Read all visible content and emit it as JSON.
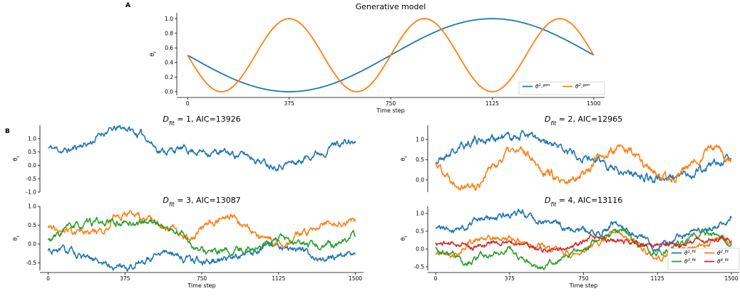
{
  "panel_labels": {
    "a": "A",
    "b": "B"
  },
  "chart_data": [
    {
      "id": "gen",
      "type": "line",
      "title": "Generative model",
      "xlabel": "Time step",
      "ylabel": "θ_t",
      "xlim": [
        -40,
        1540
      ],
      "ylim": [
        -0.05,
        1.08
      ],
      "xticks": [
        0,
        375,
        750,
        1125,
        1500
      ],
      "yticks": [
        0.0,
        0.2,
        0.4,
        0.6,
        0.8,
        1.0
      ],
      "ytick_decimals": 1,
      "grid": false,
      "legend": {
        "position": "bottom-right",
        "columns": 2
      },
      "series": [
        {
          "name": "θ^1_gen",
          "color": "#1f77b4",
          "gen": {
            "kind": "sin",
            "amp": 0.5,
            "period": 1500,
            "offset": 0.5
          }
        },
        {
          "name": "θ^2_gen",
          "color": "#ff7f0e",
          "gen": {
            "kind": "sin",
            "amp": 0.5,
            "period": 500,
            "offset": 0.5
          }
        }
      ]
    },
    {
      "id": "d1",
      "type": "line",
      "title": "D_fit = 1, AIC=13926",
      "xlabel": "",
      "ylabel": "θ_t",
      "xlim": [
        -40,
        1540
      ],
      "ylim": [
        -1.0,
        1.5
      ],
      "xticks": [],
      "yticks": [
        -1.0,
        -0.5,
        0.0,
        0.5,
        1.0
      ],
      "ytick_decimals": 1,
      "grid": false,
      "series": [
        {
          "name": "",
          "color": "#1f77b4",
          "gen": {
            "kind": "walk",
            "seed": 11,
            "sigma": 0.11,
            "anchors": [
              [
                0,
                0.65
              ],
              [
                90,
                0.55
              ],
              [
                180,
                0.8
              ],
              [
                300,
                1.3
              ],
              [
                375,
                1.4
              ],
              [
                450,
                1.15
              ],
              [
                560,
                0.55
              ],
              [
                650,
                0.6
              ],
              [
                800,
                0.5
              ],
              [
                950,
                0.4
              ],
              [
                1100,
                0.05
              ],
              [
                1200,
                0.1
              ],
              [
                1320,
                0.5
              ],
              [
                1420,
                0.85
              ],
              [
                1500,
                0.85
              ]
            ]
          }
        }
      ]
    },
    {
      "id": "d2",
      "type": "line",
      "title": "D_fit = 2, AIC=12965",
      "xlabel": "",
      "ylabel": "θ_t",
      "xlim": [
        -40,
        1540
      ],
      "ylim": [
        -0.3,
        1.35
      ],
      "xticks": [],
      "yticks": [
        0.0,
        0.5,
        1.0
      ],
      "ytick_decimals": 1,
      "grid": false,
      "series": [
        {
          "name": "",
          "color": "#1f77b4",
          "gen": {
            "kind": "walk",
            "seed": 21,
            "sigma": 0.09,
            "anchors": [
              [
                0,
                0.45
              ],
              [
                90,
                0.7
              ],
              [
                200,
                1.0
              ],
              [
                375,
                1.05
              ],
              [
                450,
                1.15
              ],
              [
                560,
                0.85
              ],
              [
                700,
                0.7
              ],
              [
                850,
                0.4
              ],
              [
                1000,
                0.2
              ],
              [
                1125,
                0.0
              ],
              [
                1250,
                0.1
              ],
              [
                1350,
                0.25
              ],
              [
                1450,
                0.45
              ],
              [
                1500,
                0.6
              ]
            ]
          }
        },
        {
          "name": "",
          "color": "#ff7f0e",
          "gen": {
            "kind": "walk",
            "seed": 22,
            "sigma": 0.09,
            "anchors": [
              [
                0,
                0.4
              ],
              [
                100,
                0.0
              ],
              [
                200,
                -0.15
              ],
              [
                280,
                0.3
              ],
              [
                375,
                0.7
              ],
              [
                470,
                0.65
              ],
              [
                560,
                0.25
              ],
              [
                650,
                -0.15
              ],
              [
                750,
                0.2
              ],
              [
                850,
                0.65
              ],
              [
                950,
                0.75
              ],
              [
                1100,
                0.3
              ],
              [
                1150,
                -0.05
              ],
              [
                1280,
                0.3
              ],
              [
                1400,
                0.85
              ],
              [
                1500,
                0.45
              ]
            ]
          }
        }
      ]
    },
    {
      "id": "d3",
      "type": "line",
      "title": "D_fit = 3, AIC=13087",
      "xlabel": "Time step",
      "ylabel": "θ_t",
      "xlim": [
        -40,
        1540
      ],
      "ylim": [
        -0.7,
        1.0
      ],
      "xticks": [
        0,
        375,
        750,
        1125,
        1500
      ],
      "yticks": [
        -0.5,
        0.0,
        0.5,
        1.0
      ],
      "ytick_decimals": 1,
      "grid": false,
      "series": [
        {
          "name": "",
          "color": "#1f77b4",
          "gen": {
            "kind": "walk",
            "seed": 31,
            "sigma": 0.08,
            "anchors": [
              [
                0,
                -0.2
              ],
              [
                100,
                -0.2
              ],
              [
                200,
                -0.45
              ],
              [
                375,
                -0.6
              ],
              [
                450,
                -0.5
              ],
              [
                560,
                -0.15
              ],
              [
                700,
                -0.4
              ],
              [
                800,
                -0.45
              ],
              [
                950,
                -0.25
              ],
              [
                1125,
                0.0
              ],
              [
                1250,
                -0.2
              ],
              [
                1350,
                -0.4
              ],
              [
                1500,
                -0.2
              ]
            ]
          }
        },
        {
          "name": "",
          "color": "#ff7f0e",
          "gen": {
            "kind": "walk",
            "seed": 32,
            "sigma": 0.08,
            "anchors": [
              [
                0,
                0.45
              ],
              [
                120,
                0.3
              ],
              [
                250,
                0.35
              ],
              [
                340,
                0.75
              ],
              [
                420,
                0.8
              ],
              [
                520,
                0.65
              ],
              [
                600,
                0.3
              ],
              [
                700,
                0.2
              ],
              [
                800,
                0.55
              ],
              [
                870,
                0.8
              ],
              [
                950,
                0.55
              ],
              [
                1050,
                0.15
              ],
              [
                1150,
                0.0
              ],
              [
                1250,
                0.3
              ],
              [
                1400,
                0.65
              ],
              [
                1500,
                0.65
              ]
            ]
          }
        },
        {
          "name": "",
          "color": "#2ca02c",
          "gen": {
            "kind": "walk",
            "seed": 33,
            "sigma": 0.08,
            "anchors": [
              [
                0,
                0.1
              ],
              [
                120,
                0.45
              ],
              [
                250,
                0.55
              ],
              [
                375,
                0.55
              ],
              [
                500,
                0.6
              ],
              [
                640,
                0.3
              ],
              [
                750,
                -0.2
              ],
              [
                850,
                -0.25
              ],
              [
                1000,
                -0.1
              ],
              [
                1125,
                0.1
              ],
              [
                1250,
                -0.05
              ],
              [
                1380,
                -0.05
              ],
              [
                1500,
                0.2
              ]
            ]
          }
        }
      ]
    },
    {
      "id": "d4",
      "type": "line",
      "title": "D_fit = 4, AIC=13116",
      "xlabel": "Time step",
      "ylabel": "θ_t",
      "xlim": [
        -40,
        1540
      ],
      "ylim": [
        -0.6,
        1.2
      ],
      "xticks": [
        0,
        375,
        750,
        1125,
        1500
      ],
      "yticks": [
        -0.5,
        0.0,
        0.5,
        1.0
      ],
      "ytick_decimals": 1,
      "grid": false,
      "legend": {
        "position": "bottom-right",
        "columns": 2
      },
      "series": [
        {
          "name": "θ^1_fit",
          "color": "#1f77b4",
          "gen": {
            "kind": "walk",
            "seed": 41,
            "sigma": 0.08,
            "anchors": [
              [
                0,
                0.55
              ],
              [
                100,
                0.6
              ],
              [
                250,
                0.85
              ],
              [
                375,
                0.95
              ],
              [
                450,
                1.0
              ],
              [
                560,
                0.75
              ],
              [
                700,
                0.55
              ],
              [
                800,
                0.45
              ],
              [
                900,
                0.7
              ],
              [
                1000,
                0.45
              ],
              [
                1125,
                0.0
              ],
              [
                1250,
                0.35
              ],
              [
                1380,
                0.55
              ],
              [
                1500,
                0.85
              ]
            ]
          }
        },
        {
          "name": "θ^2_fit",
          "color": "#ff7f0e",
          "gen": {
            "kind": "walk",
            "seed": 42,
            "sigma": 0.07,
            "anchors": [
              [
                0,
                -0.15
              ],
              [
                100,
                -0.1
              ],
              [
                200,
                0.25
              ],
              [
                375,
                0.3
              ],
              [
                500,
                0.15
              ],
              [
                600,
                -0.05
              ],
              [
                700,
                -0.15
              ],
              [
                800,
                0.15
              ],
              [
                900,
                0.4
              ],
              [
                1000,
                0.2
              ],
              [
                1125,
                -0.25
              ],
              [
                1250,
                0.0
              ],
              [
                1350,
                0.1
              ],
              [
                1450,
                0.35
              ],
              [
                1500,
                0.1
              ]
            ]
          }
        },
        {
          "name": "θ^3_fit",
          "color": "#2ca02c",
          "gen": {
            "kind": "walk",
            "seed": 43,
            "sigma": 0.07,
            "anchors": [
              [
                0,
                0.0
              ],
              [
                80,
                -0.15
              ],
              [
                150,
                -0.45
              ],
              [
                250,
                -0.2
              ],
              [
                375,
                0.0
              ],
              [
                450,
                -0.4
              ],
              [
                520,
                -0.55
              ],
              [
                620,
                -0.3
              ],
              [
                750,
                0.0
              ],
              [
                850,
                0.3
              ],
              [
                950,
                0.5
              ],
              [
                1050,
                0.0
              ],
              [
                1125,
                -0.1
              ],
              [
                1250,
                0.15
              ],
              [
                1350,
                0.45
              ],
              [
                1500,
                0.2
              ]
            ]
          }
        },
        {
          "name": "θ^4_fit",
          "color": "#d62728",
          "gen": {
            "kind": "walk",
            "seed": 44,
            "sigma": 0.06,
            "anchors": [
              [
                0,
                0.15
              ],
              [
                100,
                0.15
              ],
              [
                200,
                0.05
              ],
              [
                300,
                0.2
              ],
              [
                400,
                0.15
              ],
              [
                500,
                0.05
              ],
              [
                600,
                -0.05
              ],
              [
                700,
                0.1
              ],
              [
                800,
                0.3
              ],
              [
                900,
                0.25
              ],
              [
                1000,
                0.15
              ],
              [
                1125,
                0.1
              ],
              [
                1250,
                0.15
              ],
              [
                1350,
                0.25
              ],
              [
                1450,
                0.3
              ],
              [
                1500,
                0.3
              ]
            ]
          }
        }
      ]
    }
  ]
}
